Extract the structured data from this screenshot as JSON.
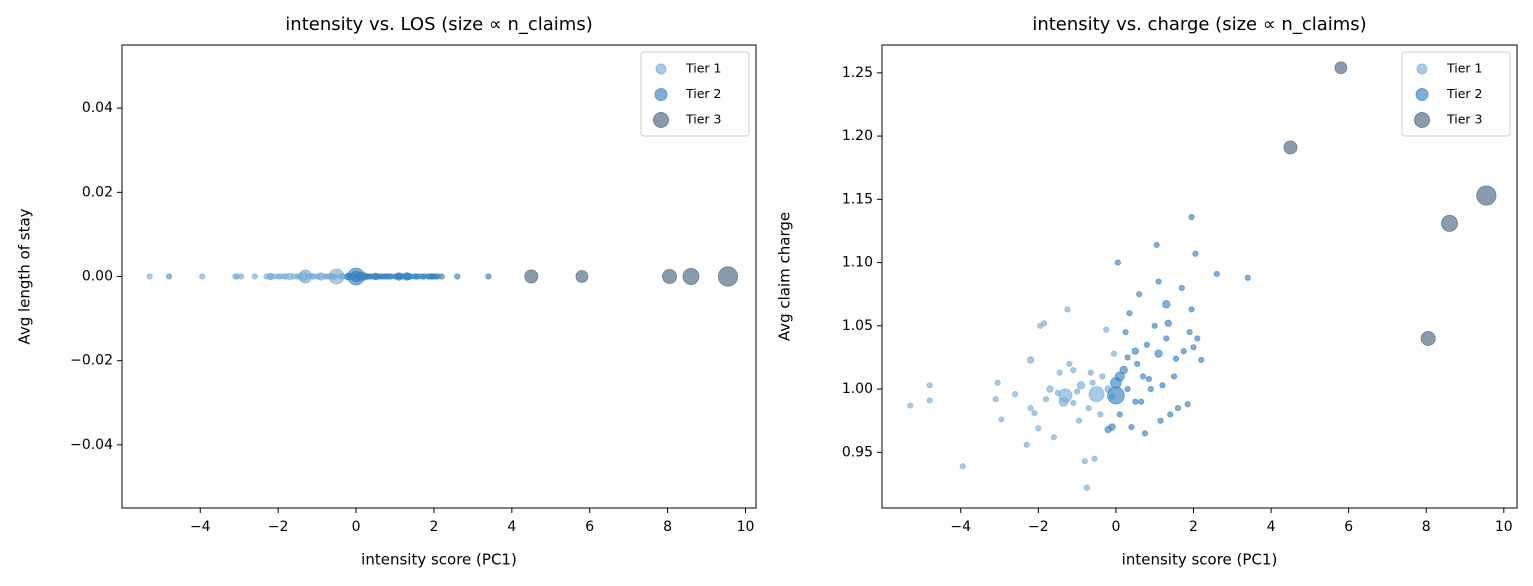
{
  "chart_data": [
    {
      "type": "scatter",
      "title": "intensity vs. LOS (size ∝ n_claims)",
      "x_label": "intensity score (PC1)",
      "y_label": "Avg length of stay",
      "xlim": [
        -6.01,
        10.27
      ],
      "ylim": [
        -0.055,
        0.055
      ],
      "xticks": [
        {
          "value": -4,
          "label": "−4"
        },
        {
          "value": -2,
          "label": "−2"
        },
        0,
        2,
        4,
        6,
        8,
        10
      ],
      "yticks": [
        {
          "value": -0.04,
          "label": "−0.04"
        },
        {
          "value": -0.02,
          "label": "−0.02"
        },
        {
          "value": 0,
          "label": "0.00"
        },
        0.02,
        0.04
      ],
      "legend": "upper right",
      "series": [
        {
          "name": "Tier 1",
          "color": "#7aaed6",
          "x": [
            -5.3,
            -4.8,
            -4.8,
            -3.95,
            -3.05,
            -3.1,
            -2.95,
            -2.6,
            -2.3,
            -2.2,
            -2.2,
            -2.1,
            -2.0,
            -1.95,
            -1.85,
            -1.8,
            -1.7,
            -1.6,
            -1.5,
            -1.45,
            -1.35,
            -1.3,
            -1.2,
            -1.25,
            -1.1,
            -1.0,
            -0.95,
            -0.9,
            -0.8,
            -0.75,
            -0.7,
            -0.6,
            -0.5,
            -0.55,
            -0.4,
            -0.35,
            -0.25,
            -0.2,
            -0.1,
            -0.05,
            -1.1,
            -0.65
          ],
          "values": [
            0,
            0,
            0,
            0,
            0,
            0,
            0,
            0,
            0,
            0,
            0,
            0,
            0,
            0,
            0,
            0,
            0,
            0,
            0,
            0,
            0,
            0,
            0,
            0,
            0,
            0,
            0,
            0,
            0,
            0,
            0,
            0,
            0,
            0,
            0,
            0,
            0,
            0,
            0,
            0,
            0,
            0
          ],
          "sizes": [
            10,
            10,
            10,
            10,
            10,
            10,
            10,
            10,
            10,
            15,
            10,
            10,
            10,
            10,
            10,
            10,
            15,
            10,
            10,
            10,
            30,
            60,
            10,
            10,
            10,
            10,
            10,
            20,
            10,
            10,
            10,
            10,
            80,
            10,
            10,
            10,
            10,
            15,
            10,
            10,
            10,
            10
          ]
        },
        {
          "name": "Tier 2",
          "color": "#3a84c2",
          "x": [
            0.0,
            0.0,
            0.1,
            0.2,
            -0.1,
            -0.2,
            0.05,
            0.1,
            0.3,
            0.3,
            0.35,
            0.4,
            0.5,
            0.5,
            0.55,
            0.6,
            0.7,
            0.75,
            0.8,
            0.9,
            1.0,
            1.05,
            1.1,
            1.1,
            1.15,
            1.2,
            1.3,
            1.35,
            1.3,
            1.4,
            1.5,
            1.55,
            1.6,
            1.7,
            1.75,
            1.85,
            1.9,
            1.95,
            1.95,
            2.0,
            2.05,
            2.1,
            2.2,
            2.6,
            3.4,
            0.25,
            0.65,
            0.85
          ],
          "values": [
            0,
            0,
            0,
            0,
            0,
            0,
            0,
            0,
            0,
            0,
            0,
            0,
            0,
            0,
            0,
            0,
            0,
            0,
            0,
            0,
            0,
            0,
            0,
            0,
            0,
            0,
            0,
            0,
            0,
            0,
            0,
            0,
            0,
            0,
            0,
            0,
            0,
            0,
            0,
            0,
            0,
            0,
            0,
            0,
            0,
            0,
            0,
            0
          ],
          "sizes": [
            100,
            40,
            30,
            20,
            15,
            15,
            10,
            10,
            10,
            10,
            10,
            10,
            15,
            10,
            10,
            10,
            10,
            10,
            10,
            10,
            10,
            10,
            10,
            20,
            10,
            10,
            20,
            15,
            10,
            10,
            10,
            10,
            10,
            10,
            10,
            10,
            10,
            10,
            10,
            10,
            10,
            10,
            10,
            10,
            10,
            10,
            10,
            10
          ]
        },
        {
          "name": "Tier 3",
          "color": "#4a6782",
          "x": [
            4.5,
            5.8,
            8.05,
            8.6,
            9.55
          ],
          "values": [
            0,
            0,
            0,
            0,
            0
          ],
          "sizes": [
            60,
            50,
            70,
            90,
            130
          ]
        }
      ]
    },
    {
      "type": "scatter",
      "title": "intensity vs. charge (size ∝ n_claims)",
      "x_label": "intensity score (PC1)",
      "y_label": "Avg claim charge",
      "xlim": [
        -6.03,
        10.34
      ],
      "ylim": [
        0.906,
        1.272
      ],
      "xticks": [
        {
          "value": -4,
          "label": "−4"
        },
        {
          "value": -2,
          "label": "−2"
        },
        0,
        2,
        4,
        6,
        8,
        10
      ],
      "yticks": [
        0.95,
        {
          "value": 1.0,
          "label": "1.00"
        },
        1.05,
        {
          "value": 1.1,
          "label": "1.10"
        },
        1.15,
        {
          "value": 1.2,
          "label": "1.20"
        },
        1.25
      ],
      "legend": "upper right",
      "series": [
        {
          "name": "Tier 1",
          "color": "#7aaed6",
          "x": [
            -5.3,
            -4.8,
            -4.8,
            -3.95,
            -3.05,
            -3.1,
            -2.95,
            -2.6,
            -2.3,
            -2.2,
            -2.2,
            -2.1,
            -2.0,
            -1.95,
            -1.85,
            -1.8,
            -1.7,
            -1.6,
            -1.5,
            -1.45,
            -1.35,
            -1.3,
            -1.2,
            -1.25,
            -1.1,
            -1.0,
            -0.95,
            -0.9,
            -0.8,
            -0.75,
            -0.7,
            -0.6,
            -0.5,
            -0.55,
            -0.4,
            -0.35,
            -0.25,
            -0.2,
            -0.1,
            -0.05,
            -1.1,
            -0.65
          ],
          "values": [
            0.987,
            1.003,
            0.991,
            0.939,
            1.005,
            0.992,
            0.976,
            0.996,
            0.956,
            1.023,
            0.985,
            0.981,
            0.969,
            1.05,
            1.052,
            0.992,
            1.0,
            0.962,
            0.997,
            1.013,
            0.99,
            0.995,
            1.02,
            1.063,
            1.015,
            0.998,
            0.975,
            1.003,
            0.943,
            0.922,
            0.985,
            1.005,
            0.996,
            0.945,
            0.98,
            1.01,
            1.047,
            1.0,
            0.994,
            1.028,
            0.989,
            1.013
          ],
          "sizes": [
            10,
            10,
            10,
            10,
            10,
            10,
            10,
            10,
            10,
            15,
            10,
            10,
            10,
            10,
            10,
            10,
            15,
            10,
            10,
            10,
            30,
            60,
            10,
            10,
            10,
            10,
            10,
            20,
            10,
            10,
            10,
            10,
            80,
            10,
            10,
            10,
            10,
            15,
            10,
            10,
            10,
            10
          ]
        },
        {
          "name": "Tier 2",
          "color": "#3a84c2",
          "x": [
            0.0,
            0.0,
            0.1,
            0.2,
            -0.1,
            -0.2,
            0.05,
            0.1,
            0.3,
            0.3,
            0.35,
            0.4,
            0.5,
            0.5,
            0.55,
            0.6,
            0.7,
            0.75,
            0.8,
            0.9,
            1.0,
            1.05,
            1.1,
            1.1,
            1.15,
            1.2,
            1.3,
            1.35,
            1.3,
            1.4,
            1.5,
            1.55,
            1.6,
            1.7,
            1.75,
            1.85,
            1.9,
            1.95,
            1.95,
            2.0,
            2.05,
            2.1,
            2.2,
            2.6,
            3.4,
            0.25,
            0.65,
            0.85
          ],
          "values": [
            0.995,
            1.005,
            1.01,
            1.015,
            0.97,
            0.968,
            1.1,
            0.98,
            1.0,
            1.025,
            1.06,
            0.97,
            1.03,
            0.99,
            1.02,
            1.075,
            1.01,
            0.965,
            1.035,
            1.0,
            1.05,
            1.114,
            1.085,
            1.028,
            0.975,
            1.003,
            1.067,
            1.052,
            1.04,
            0.98,
            1.01,
            1.024,
            0.985,
            1.08,
            1.03,
            0.988,
            1.045,
            1.136,
            1.063,
            1.033,
            1.107,
            1.04,
            1.023,
            1.091,
            1.088,
            1.045,
            0.99,
            1.008
          ],
          "sizes": [
            100,
            40,
            30,
            20,
            15,
            15,
            10,
            10,
            10,
            10,
            10,
            10,
            15,
            10,
            10,
            10,
            10,
            10,
            10,
            10,
            10,
            10,
            10,
            20,
            10,
            10,
            20,
            15,
            10,
            10,
            10,
            10,
            10,
            10,
            10,
            10,
            10,
            10,
            10,
            10,
            10,
            10,
            10,
            10,
            10,
            10,
            10,
            10
          ]
        },
        {
          "name": "Tier 3",
          "color": "#4a6782",
          "x": [
            4.5,
            5.8,
            8.05,
            8.6,
            9.55
          ],
          "values": [
            1.191,
            1.254,
            1.04,
            1.131,
            1.153
          ],
          "sizes": [
            60,
            50,
            70,
            90,
            130
          ]
        }
      ]
    }
  ]
}
